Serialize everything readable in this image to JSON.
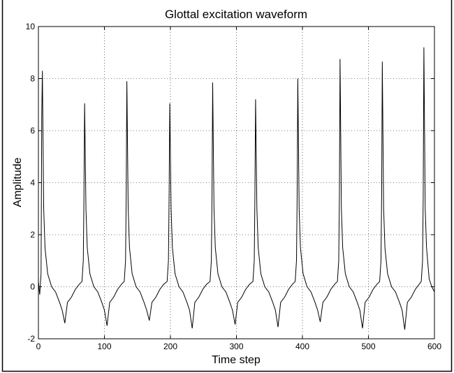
{
  "chart_data": {
    "type": "line",
    "title": "Glottal excitation waveform",
    "x_label": "Time step",
    "y_label": "Amplitude",
    "color": "#000000",
    "grid": true,
    "xlim": [
      0,
      600
    ],
    "xticks": [
      0,
      100,
      200,
      300,
      400,
      500,
      600
    ],
    "ylim": [
      -2,
      10
    ],
    "yticks": [
      -2,
      0,
      2,
      4,
      6,
      8,
      10
    ],
    "x": [
      0,
      2,
      4,
      5,
      6,
      8,
      10,
      14,
      20,
      26,
      32,
      36,
      40,
      44,
      50,
      56,
      62,
      66,
      68,
      69,
      70,
      72,
      74,
      78,
      84,
      90,
      96,
      100,
      104,
      108,
      114,
      120,
      126,
      130,
      132,
      133,
      134,
      136,
      138,
      142,
      148,
      154,
      160,
      164,
      168,
      172,
      178,
      184,
      190,
      195,
      197,
      198,
      199,
      201,
      203,
      207,
      213,
      219,
      225,
      229,
      233,
      237,
      243,
      249,
      255,
      260,
      262,
      263,
      264,
      266,
      268,
      272,
      278,
      284,
      290,
      294,
      298,
      302,
      308,
      314,
      320,
      325,
      327,
      328,
      329,
      331,
      333,
      337,
      343,
      349,
      355,
      359,
      363,
      367,
      373,
      379,
      385,
      389,
      391,
      392,
      393,
      395,
      397,
      401,
      407,
      413,
      419,
      423,
      427,
      431,
      437,
      443,
      449,
      453,
      455,
      456,
      457,
      459,
      461,
      465,
      471,
      477,
      483,
      487,
      491,
      495,
      501,
      507,
      513,
      517,
      519,
      520,
      521,
      523,
      525,
      529,
      535,
      541,
      547,
      551,
      555,
      559,
      565,
      571,
      577,
      580,
      582,
      583,
      584,
      586,
      588,
      592,
      596,
      600
    ],
    "values": [
      0.2,
      -0.3,
      0.5,
      6.5,
      8.3,
      3.0,
      1.5,
      0.5,
      0.0,
      -0.2,
      -0.6,
      -0.9,
      -1.4,
      -0.6,
      -0.4,
      -0.1,
      0.1,
      0.2,
      1.0,
      3.5,
      7.05,
      3.0,
      1.5,
      0.5,
      0.0,
      -0.2,
      -0.6,
      -0.9,
      -1.5,
      -0.6,
      -0.4,
      -0.1,
      0.1,
      0.2,
      1.0,
      3.5,
      7.9,
      3.0,
      1.5,
      0.5,
      0.0,
      -0.2,
      -0.6,
      -0.9,
      -1.3,
      -0.6,
      -0.4,
      -0.1,
      0.1,
      0.2,
      1.0,
      3.5,
      7.05,
      3.0,
      1.5,
      0.5,
      0.0,
      -0.2,
      -0.6,
      -0.9,
      -1.6,
      -0.6,
      -0.4,
      -0.1,
      0.1,
      0.2,
      1.0,
      3.5,
      7.85,
      3.0,
      1.5,
      0.5,
      0.0,
      -0.2,
      -0.6,
      -0.9,
      -1.45,
      -0.6,
      -0.4,
      -0.1,
      0.1,
      0.2,
      1.0,
      3.5,
      7.2,
      3.0,
      1.5,
      0.5,
      0.0,
      -0.2,
      -0.6,
      -0.9,
      -1.55,
      -0.6,
      -0.4,
      -0.1,
      0.1,
      0.2,
      1.0,
      3.5,
      8.0,
      3.0,
      1.5,
      0.5,
      0.0,
      -0.2,
      -0.6,
      -0.9,
      -1.35,
      -0.6,
      -0.4,
      -0.1,
      0.1,
      0.2,
      1.0,
      3.5,
      8.75,
      3.0,
      1.5,
      0.5,
      0.0,
      -0.2,
      -0.6,
      -0.9,
      -1.6,
      -0.6,
      -0.4,
      -0.1,
      0.1,
      0.2,
      1.0,
      3.5,
      8.65,
      3.0,
      1.5,
      0.5,
      0.0,
      -0.2,
      -0.6,
      -0.9,
      -1.65,
      -0.6,
      -0.4,
      -0.1,
      0.1,
      0.2,
      1.0,
      3.5,
      9.2,
      3.0,
      1.5,
      0.3,
      0.0,
      -0.2
    ]
  }
}
